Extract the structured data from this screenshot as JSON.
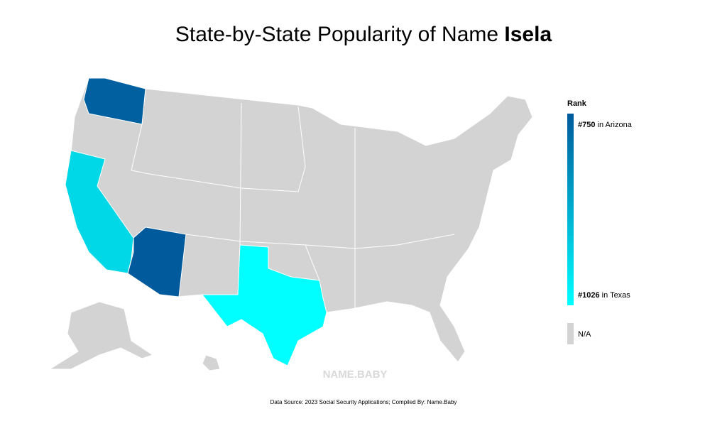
{
  "title": "State-by-State Popularity of Name ",
  "name": "Isela",
  "legend": {
    "title": "Rank",
    "high": {
      "rank": {
        "value": 750,
        "label": "#750"
      },
      "text": " in Arizona"
    },
    "low": {
      "rank": {
        "value": 1026,
        "label": "#1026"
      },
      "text": " in Texas"
    },
    "colors": [
      "#005a9c",
      "#00ffff"
    ],
    "na": "N/A",
    "na_color": "#d3d3d3"
  },
  "states": [
    {
      "name": "Washington",
      "rank": 760
    },
    {
      "name": "California",
      "rank": 960
    },
    {
      "name": "Arizona",
      "rank": 750
    },
    {
      "name": "Texas",
      "rank": 1026
    }
  ],
  "watermark": "NAME.BABY",
  "source": "Data Source: 2023 Social Security Applications; Compiled By: Name.Baby"
}
